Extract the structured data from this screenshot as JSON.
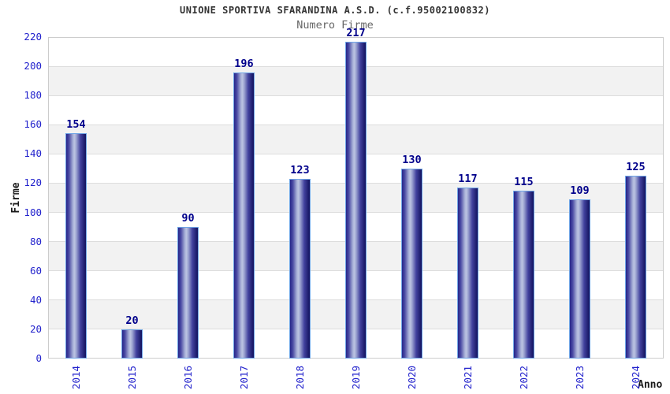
{
  "chart_data": {
    "type": "bar",
    "title": "UNIONE SPORTIVA SFARANDINA A.S.D. (c.f.95002100832)",
    "subtitle": "Numero Firme",
    "categories": [
      "2014",
      "2015",
      "2016",
      "2017",
      "2018",
      "2019",
      "2020",
      "2021",
      "2022",
      "2023",
      "2024"
    ],
    "values": [
      154,
      20,
      90,
      196,
      123,
      217,
      130,
      117,
      115,
      109,
      125
    ],
    "xlabel": "Anno",
    "ylabel": "Firme",
    "ylim": [
      0,
      220
    ],
    "yticks": [
      0,
      20,
      40,
      60,
      80,
      100,
      120,
      140,
      160,
      180,
      200,
      220
    ],
    "grid": "horizontal-bands-alternating",
    "legend": "none",
    "bar_labels_shown": true
  },
  "colors": {
    "title": "#333333",
    "subtitle": "#666666",
    "tick_label": "#2222cc",
    "value_label": "#00008b",
    "axis_title": "#1a1a1a",
    "plot_border": "#cccccc",
    "grid_line": "#dddddd",
    "band_alt": "#f2f2f2",
    "band_main": "#ffffff",
    "bar_border": "#6fa5e6",
    "bar_gradient": [
      "#26268a",
      "#4a4aa4",
      "#a2aad4",
      "#bcc4e2",
      "#a2aad4",
      "#42429e",
      "#12125e"
    ],
    "bar_gradient_stops": [
      0,
      14,
      33,
      41,
      50,
      72,
      100
    ]
  }
}
